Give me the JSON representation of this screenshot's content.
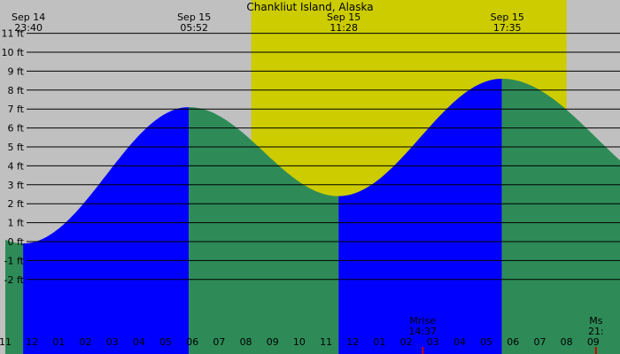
{
  "chart_data": {
    "type": "area",
    "title": "Chankliut Island, Alaska",
    "y_unit": "ft",
    "ylim": [
      -3,
      12
    ],
    "y_ticks": [
      {
        "value": 11,
        "label": "11 ft"
      },
      {
        "value": 10,
        "label": "10 ft"
      },
      {
        "value": 9,
        "label": "9 ft"
      },
      {
        "value": 8,
        "label": "8 ft"
      },
      {
        "value": 7,
        "label": "7 ft"
      },
      {
        "value": 6,
        "label": "6 ft"
      },
      {
        "value": 5,
        "label": "5 ft"
      },
      {
        "value": 4,
        "label": "4 ft"
      },
      {
        "value": 3,
        "label": "3 ft"
      },
      {
        "value": 2,
        "label": "2 ft"
      },
      {
        "value": 1,
        "label": "1 ft"
      },
      {
        "value": 0,
        "label": "0 ft"
      },
      {
        "value": -1,
        "label": "-1 ft"
      },
      {
        "value": -2,
        "label": "-2 ft"
      }
    ],
    "x_range_hours": [
      -1.0,
      22.0
    ],
    "x_ticks": [
      {
        "hour": -1,
        "label": "11"
      },
      {
        "hour": 0,
        "label": "12"
      },
      {
        "hour": 1,
        "label": "01"
      },
      {
        "hour": 2,
        "label": "02"
      },
      {
        "hour": 3,
        "label": "03"
      },
      {
        "hour": 4,
        "label": "04"
      },
      {
        "hour": 5,
        "label": "05"
      },
      {
        "hour": 6,
        "label": "06"
      },
      {
        "hour": 7,
        "label": "07"
      },
      {
        "hour": 8,
        "label": "08"
      },
      {
        "hour": 9,
        "label": "09"
      },
      {
        "hour": 10,
        "label": "10"
      },
      {
        "hour": 11,
        "label": "11"
      },
      {
        "hour": 12,
        "label": "12"
      },
      {
        "hour": 13,
        "label": "01"
      },
      {
        "hour": 14,
        "label": "02"
      },
      {
        "hour": 15,
        "label": "03"
      },
      {
        "hour": 16,
        "label": "04"
      },
      {
        "hour": 17,
        "label": "05"
      },
      {
        "hour": 18,
        "label": "06"
      },
      {
        "hour": 19,
        "label": "07"
      },
      {
        "hour": 20,
        "label": "08"
      },
      {
        "hour": 21,
        "label": "09"
      }
    ],
    "tide_extremes": [
      {
        "date": "Sep 14",
        "time": "23:40",
        "hour": -0.333,
        "height": -0.1,
        "kind": "low"
      },
      {
        "date": "Sep 15",
        "time": "05:52",
        "hour": 5.867,
        "height": 7.1,
        "kind": "high"
      },
      {
        "date": "Sep 15",
        "time": "11:28",
        "hour": 11.467,
        "height": 2.4,
        "kind": "low"
      },
      {
        "date": "Sep 15",
        "time": "17:35",
        "hour": 17.583,
        "height": 8.6,
        "kind": "high"
      }
    ],
    "series_edges": {
      "start_height": 0.4,
      "end_height": 3.3
    },
    "daylight_hours": [
      8.2,
      20.0
    ],
    "moon_events": [
      {
        "label": "Mrise",
        "time": "14:37",
        "hour": 14.617
      },
      {
        "label": "Ms",
        "time": "21:",
        "hour": 21.1
      }
    ],
    "colors": {
      "night": "#c0c0c0",
      "day": "#cccc00",
      "rising": "#0000ff",
      "falling": "#2e8b57",
      "grid": "#000000",
      "moon_marker": "#cc0000"
    },
    "grid": true
  }
}
